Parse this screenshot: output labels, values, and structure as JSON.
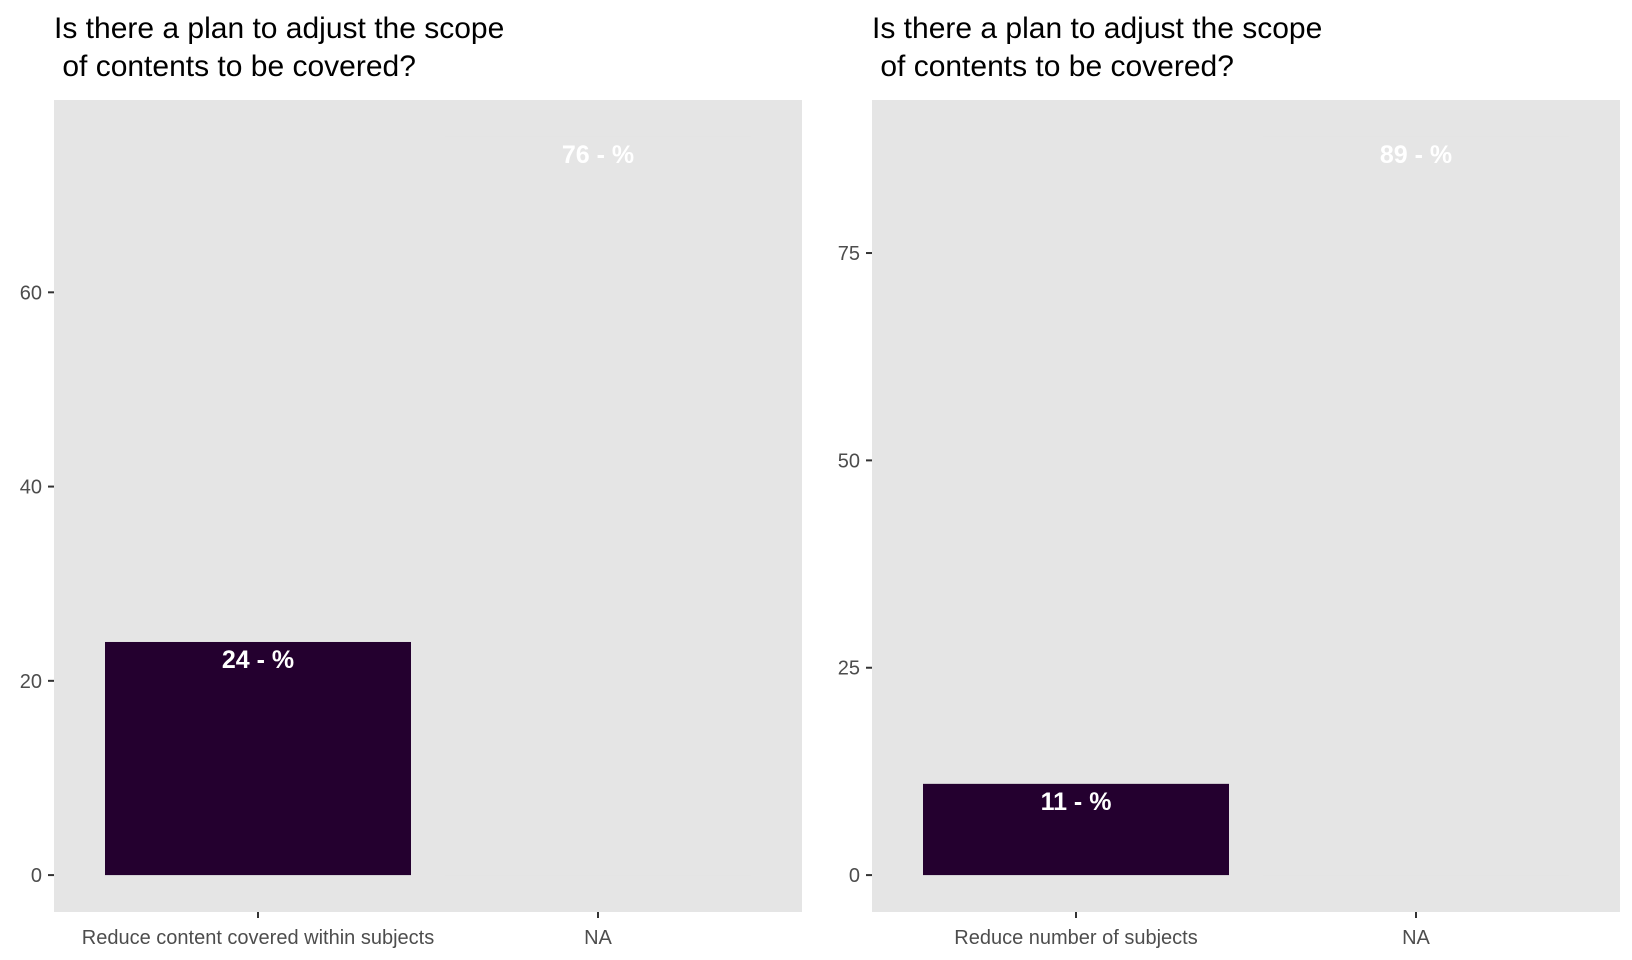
{
  "chart_data": [
    {
      "type": "bar",
      "title_lines": [
        "Is there a plan to adjust the scope",
        " of contents to be covered?"
      ],
      "categories": [
        "Reduce content covered within subjects",
        "NA"
      ],
      "values": [
        24,
        76
      ],
      "bar_labels": [
        "24 - %",
        "76 - %"
      ],
      "bar_colors": [
        "#24002f",
        "#e5e5e5"
      ],
      "yticks": [
        0,
        20,
        40,
        60
      ],
      "ylim": [
        -3.8,
        79.8
      ],
      "xlabel": "",
      "ylabel": "",
      "grid": false,
      "legend": "none",
      "panel_color": "#e5e5e5"
    },
    {
      "type": "bar",
      "title_lines": [
        "Is there a plan to adjust the scope",
        " of contents to be covered?"
      ],
      "categories": [
        "Reduce number of subjects",
        "NA"
      ],
      "values": [
        11,
        89
      ],
      "bar_labels": [
        "11 - %",
        "89 - %"
      ],
      "bar_colors": [
        "#24002f",
        "#e5e5e5"
      ],
      "yticks": [
        0,
        25,
        50,
        75
      ],
      "ylim": [
        -4.45,
        93.45
      ],
      "xlabel": "",
      "ylabel": "",
      "grid": false,
      "legend": "none",
      "panel_color": "#e5e5e5"
    }
  ]
}
